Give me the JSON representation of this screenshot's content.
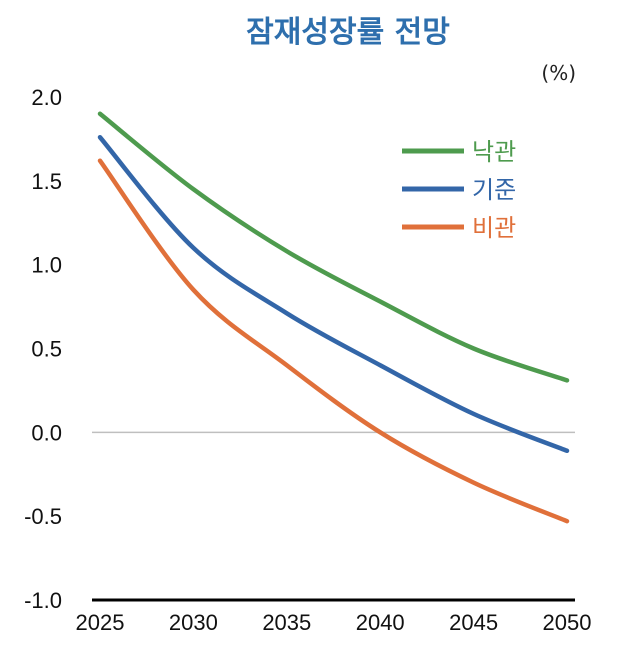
{
  "chart_data": {
    "type": "line",
    "title": "잠재성장률 전망",
    "unit": "(%)",
    "xlabel": "",
    "ylabel": "",
    "xlim": [
      2025,
      2050
    ],
    "ylim": [
      -1.0,
      2.0
    ],
    "x_ticks": [
      "2025",
      "2030",
      "2035",
      "2040",
      "2045",
      "2050"
    ],
    "y_ticks": [
      "2.0",
      "1.5",
      "1.0",
      "0.5",
      "0.0",
      "-0.5",
      "-1.0"
    ],
    "legend_position": "top-right",
    "grid": false,
    "x": [
      2025,
      2030,
      2035,
      2040,
      2045,
      2050
    ],
    "series": [
      {
        "name": "낙관",
        "color": "#4e9b4e",
        "values": [
          1.9,
          1.45,
          1.08,
          0.78,
          0.5,
          0.31
        ]
      },
      {
        "name": "기준",
        "color": "#3366a8",
        "values": [
          1.76,
          1.1,
          0.71,
          0.4,
          0.11,
          -0.11
        ]
      },
      {
        "name": "비관",
        "color": "#e0703a",
        "values": [
          1.62,
          0.85,
          0.4,
          0.0,
          -0.3,
          -0.53
        ]
      }
    ]
  }
}
